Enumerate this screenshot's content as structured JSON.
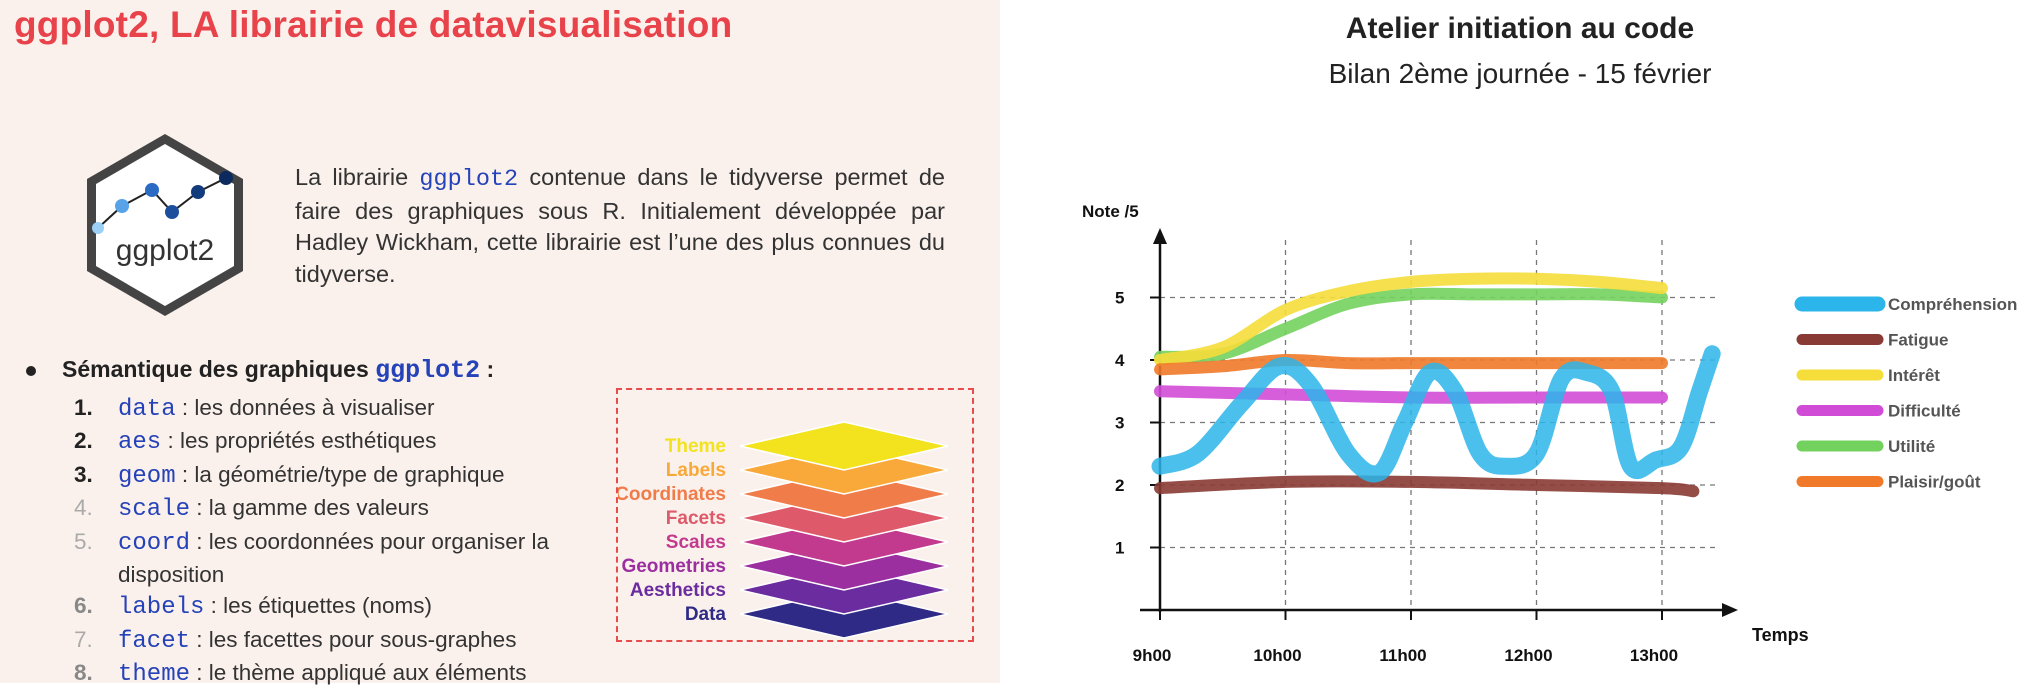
{
  "slide": {
    "title": "ggplot2, LA librairie de datavisualisation",
    "logo_text": "ggplot2",
    "intro": {
      "pre": "La librairie ",
      "code": "ggplot2",
      "post": " contenue dans le tidyverse permet de faire des graphiques sous R. Initialement développée par Hadley Wickham, cette librairie est l’une des plus connues du tidyverse."
    },
    "semantics_label": "Sémantique des graphiques",
    "semantics_code": "ggplot2",
    "semantics_colon": " :",
    "items": [
      {
        "num": "1.",
        "code": "data",
        "text": " : les données à visualiser",
        "style": "strong"
      },
      {
        "num": "2.",
        "code": "aes",
        "text": " : les propriétés esthétiques",
        "style": "strong"
      },
      {
        "num": "3.",
        "code": "geom",
        "text": " : la géométrie/type de graphique",
        "style": "strong"
      },
      {
        "num": "4.",
        "code": "scale",
        "text": " : la gamme des valeurs",
        "style": "faded"
      },
      {
        "num": "5.",
        "code": "coord",
        "text": " : les coordonnées pour organiser la disposition",
        "style": "faded"
      },
      {
        "num": "6.",
        "code": "labels",
        "text": " : les étiquettes (noms)",
        "style": "mid"
      },
      {
        "num": "7.",
        "code": "facet",
        "text": " : les facettes pour sous-graphes",
        "style": "faded"
      },
      {
        "num": "8.",
        "code": "theme",
        "text": " : le thème appliqué aux éléments",
        "style": "mid"
      }
    ],
    "layers": [
      {
        "label": "Theme",
        "color": "#f2e31e"
      },
      {
        "label": "Labels",
        "color": "#f9a83a"
      },
      {
        "label": "Coordinates",
        "color": "#f07c4a"
      },
      {
        "label": "Facets",
        "color": "#de5a6a"
      },
      {
        "label": "Scales",
        "color": "#c23a8e"
      },
      {
        "label": "Geometries",
        "color": "#9b2fa0"
      },
      {
        "label": "Aesthetics",
        "color": "#6a2c9e"
      },
      {
        "label": "Data",
        "color": "#2e2a86"
      }
    ]
  },
  "chart_data": {
    "type": "line",
    "title": "Atelier initiation au code",
    "subtitle": "Bilan 2ème journée - 15 février",
    "ylabel": "Note /5",
    "xlabel": "Temps",
    "categories": [
      "9h00",
      "10h00",
      "11h00",
      "12h00",
      "13h00"
    ],
    "x_numeric": [
      9,
      10,
      11,
      12,
      13
    ],
    "y_ticks": [
      1,
      2,
      3,
      4,
      5
    ],
    "ylim": [
      0,
      5.8
    ],
    "xlim": [
      9,
      13.6
    ],
    "grid": true,
    "legend_position": "right",
    "series": [
      {
        "name": "Compréhension",
        "color": "#2bb5ea",
        "x": [
          9.0,
          9.3,
          9.65,
          9.95,
          10.2,
          10.5,
          10.75,
          10.95,
          11.15,
          11.35,
          11.55,
          11.75,
          12.0,
          12.2,
          12.4,
          12.6,
          12.75,
          12.95,
          13.15,
          13.3,
          13.4
        ],
        "y": [
          2.3,
          2.5,
          3.3,
          3.9,
          3.6,
          2.5,
          2.2,
          3.0,
          3.8,
          3.5,
          2.5,
          2.3,
          2.5,
          3.7,
          3.8,
          3.5,
          2.3,
          2.4,
          2.6,
          3.5,
          4.1
        ]
      },
      {
        "name": "Fatigue",
        "color": "#8a3a34",
        "x": [
          9.0,
          10.0,
          11.0,
          12.0,
          13.0,
          13.25
        ],
        "y": [
          1.95,
          2.05,
          2.05,
          2.0,
          1.95,
          1.9
        ]
      },
      {
        "name": "Intérêt",
        "color": "#f5dd3a",
        "x": [
          9.0,
          9.5,
          10.0,
          10.5,
          11.0,
          11.5,
          12.0,
          12.5,
          13.0
        ],
        "y": [
          4.0,
          4.2,
          4.8,
          5.1,
          5.25,
          5.3,
          5.3,
          5.25,
          5.15
        ]
      },
      {
        "name": "Difficulté",
        "color": "#d14cd6",
        "x": [
          9.0,
          10.0,
          11.0,
          12.0,
          13.0
        ],
        "y": [
          3.5,
          3.45,
          3.4,
          3.4,
          3.4
        ]
      },
      {
        "name": "Utilité",
        "color": "#73d15e",
        "x": [
          9.0,
          9.5,
          10.0,
          10.5,
          11.0,
          11.5,
          12.0,
          12.5,
          13.0
        ],
        "y": [
          4.05,
          4.1,
          4.5,
          4.9,
          5.05,
          5.05,
          5.05,
          5.05,
          5.0
        ]
      },
      {
        "name": "Plaisir/goût",
        "color": "#f07a2a",
        "x": [
          9.0,
          9.5,
          10.0,
          10.5,
          11.0,
          11.5,
          12.0,
          12.5,
          13.0
        ],
        "y": [
          3.85,
          3.9,
          4.0,
          3.95,
          3.95,
          3.95,
          3.95,
          3.95,
          3.95
        ]
      }
    ]
  }
}
